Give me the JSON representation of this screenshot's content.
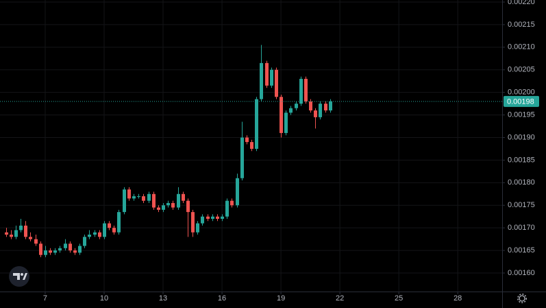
{
  "chart_data": {
    "type": "candlestick",
    "x": [
      5,
      5.25,
      5.5,
      5.75,
      6,
      6.25,
      6.5,
      6.75,
      7,
      7.25,
      7.5,
      7.75,
      8,
      8.25,
      8.5,
      8.75,
      9,
      9.25,
      9.5,
      9.75,
      10,
      10.25,
      10.5,
      10.75,
      11,
      11.25,
      11.5,
      11.75,
      12,
      12.25,
      12.5,
      12.75,
      13,
      13.25,
      13.5,
      13.75,
      14,
      14.25,
      14.5,
      14.75,
      15,
      15.25,
      15.5,
      15.75,
      16,
      16.25,
      16.5,
      16.75,
      17,
      17.25,
      17.5,
      17.75,
      18,
      18.25,
      18.5,
      18.75,
      19,
      19.25,
      19.5,
      19.75,
      20,
      20.25,
      20.5,
      20.75,
      21,
      21.25,
      21.5
    ],
    "open": [
      0.00169,
      0.001685,
      0.00168,
      0.001695,
      0.001705,
      0.00168,
      0.001675,
      0.001665,
      0.00164,
      0.00165,
      0.001645,
      0.00165,
      0.001655,
      0.001665,
      0.00165,
      0.001645,
      0.00166,
      0.00168,
      0.001685,
      0.00169,
      0.00168,
      0.00171,
      0.0017,
      0.00169,
      0.001735,
      0.001785,
      0.001765,
      0.00177,
      0.00177,
      0.00176,
      0.001775,
      0.001745,
      0.00174,
      0.00175,
      0.001755,
      0.001745,
      0.001775,
      0.00176,
      0.001735,
      0.00169,
      0.00171,
      0.001725,
      0.00172,
      0.001725,
      0.00172,
      0.001725,
      0.00176,
      0.00175,
      0.00181,
      0.0019,
      0.00189,
      0.001875,
      0.001985,
      0.002065,
      0.002015,
      0.00205,
      0.00199,
      0.00191,
      0.001955,
      0.001965,
      0.001975,
      0.00203,
      0.00198,
      0.00196,
      0.001945,
      0.001975,
      0.00196
    ],
    "high": [
      0.0017,
      0.001695,
      0.001705,
      0.00172,
      0.001715,
      0.00169,
      0.001685,
      0.00167,
      0.00166,
      0.001655,
      0.001655,
      0.00166,
      0.001675,
      0.00167,
      0.001655,
      0.001665,
      0.001685,
      0.001695,
      0.001695,
      0.001695,
      0.001715,
      0.001715,
      0.001705,
      0.00174,
      0.00179,
      0.00179,
      0.001775,
      0.001775,
      0.001775,
      0.00178,
      0.00178,
      0.00175,
      0.001755,
      0.00176,
      0.00176,
      0.00179,
      0.00178,
      0.001765,
      0.00174,
      0.001715,
      0.00173,
      0.00173,
      0.00173,
      0.00173,
      0.00173,
      0.001765,
      0.001765,
      0.00182,
      0.001935,
      0.001905,
      0.001895,
      0.00199,
      0.002105,
      0.00207,
      0.002055,
      0.002055,
      0.001995,
      0.00196,
      0.00197,
      0.00198,
      0.002035,
      0.002035,
      0.001985,
      0.001965,
      0.00198,
      0.00198,
      0.001985
    ],
    "low": [
      0.00168,
      0.001675,
      0.001675,
      0.00169,
      0.001675,
      0.00167,
      0.00166,
      0.001635,
      0.001635,
      0.00164,
      0.00164,
      0.001645,
      0.00165,
      0.001645,
      0.00164,
      0.00164,
      0.001655,
      0.001675,
      0.00168,
      0.001675,
      0.001675,
      0.001695,
      0.001685,
      0.001685,
      0.00173,
      0.00176,
      0.00176,
      0.001765,
      0.001755,
      0.001755,
      0.00174,
      0.001735,
      0.001735,
      0.001745,
      0.00174,
      0.00174,
      0.001755,
      0.00168,
      0.00168,
      0.001685,
      0.001705,
      0.001715,
      0.001715,
      0.001715,
      0.001715,
      0.00172,
      0.001745,
      0.001745,
      0.001805,
      0.001885,
      0.00187,
      0.00187,
      0.00198,
      0.00201,
      0.00201,
      0.001985,
      0.0019,
      0.001905,
      0.00195,
      0.00196,
      0.00197,
      0.001975,
      0.001955,
      0.00192,
      0.00194,
      0.001955,
      0.001955
    ],
    "close": [
      0.001685,
      0.00168,
      0.001695,
      0.001705,
      0.00168,
      0.001675,
      0.001665,
      0.00164,
      0.00165,
      0.001645,
      0.00165,
      0.001655,
      0.001665,
      0.00165,
      0.001645,
      0.00166,
      0.00168,
      0.001685,
      0.00169,
      0.00168,
      0.00171,
      0.0017,
      0.00169,
      0.001735,
      0.001785,
      0.001765,
      0.00177,
      0.00177,
      0.00176,
      0.001775,
      0.001745,
      0.00174,
      0.00175,
      0.001755,
      0.001745,
      0.001775,
      0.00176,
      0.001735,
      0.00169,
      0.00171,
      0.001725,
      0.00172,
      0.001725,
      0.00172,
      0.001725,
      0.00176,
      0.00175,
      0.00181,
      0.0019,
      0.00189,
      0.001875,
      0.001985,
      0.002065,
      0.002015,
      0.00205,
      0.00199,
      0.00191,
      0.001955,
      0.001965,
      0.001975,
      0.00203,
      0.00198,
      0.00196,
      0.001945,
      0.001975,
      0.00196,
      0.00198
    ],
    "up_color": "#26a69a",
    "down_color": "#ef5350",
    "xlim": [
      4.7,
      30.26
    ],
    "xticks": [
      7,
      10,
      13,
      16,
      19,
      22,
      25,
      28
    ],
    "ylim": [
      0.001559,
      0.0022
    ],
    "yticks": [
      {
        "value": 0.0016,
        "label": "0.00160"
      },
      {
        "value": 0.00165,
        "label": "0.00165"
      },
      {
        "value": 0.0017,
        "label": "0.00170"
      },
      {
        "value": 0.00175,
        "label": "0.00175"
      },
      {
        "value": 0.0018,
        "label": "0.00180"
      },
      {
        "value": 0.00185,
        "label": "0.00185"
      },
      {
        "value": 0.0019,
        "label": "0.00190"
      },
      {
        "value": 0.00195,
        "label": "0.00195"
      },
      {
        "value": 0.002,
        "label": "0.00200"
      },
      {
        "value": 0.00205,
        "label": "0.00205"
      },
      {
        "value": 0.0021,
        "label": "0.00210"
      },
      {
        "value": 0.00215,
        "label": "0.00215"
      },
      {
        "value": 0.0022,
        "label": "0.00220"
      }
    ],
    "last_price": {
      "value": 0.00198,
      "label": "0.00198"
    },
    "grid": true
  }
}
